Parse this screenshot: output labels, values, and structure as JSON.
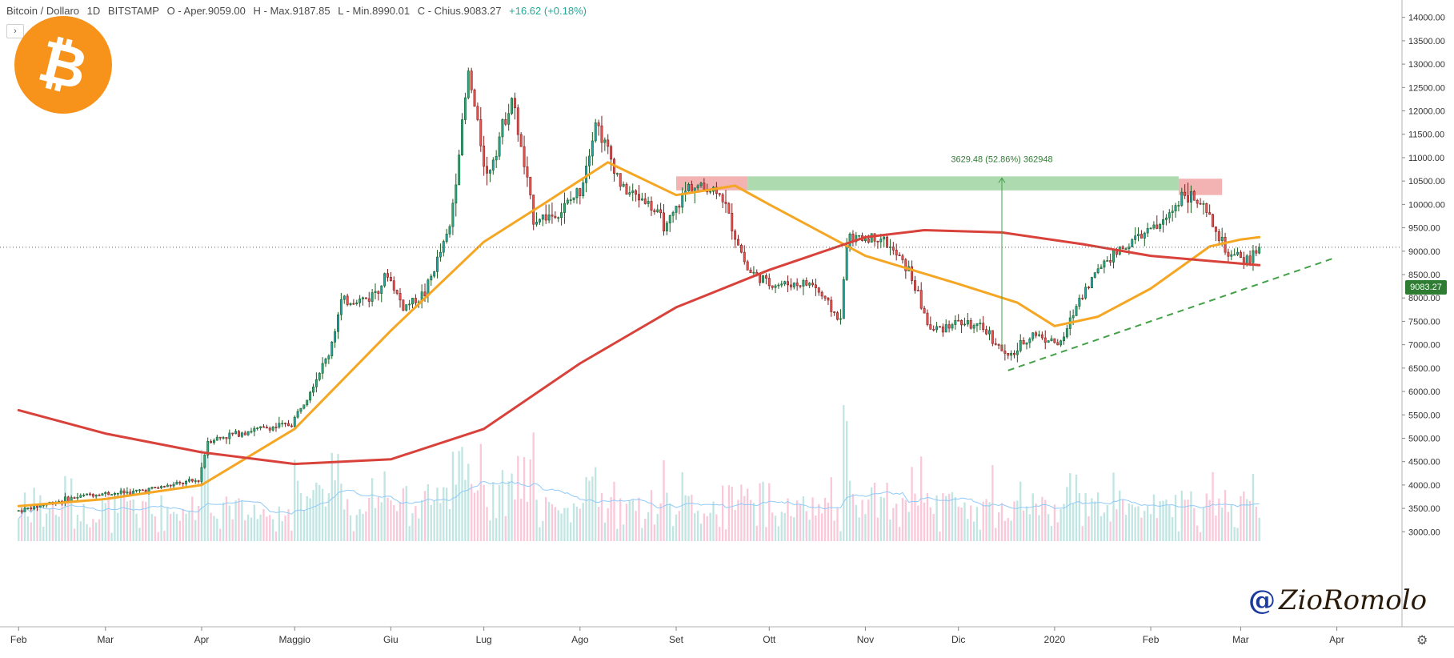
{
  "header": {
    "symbol": "Bitcoin / Dollaro",
    "interval": "1D",
    "exchange": "BITSTAMP",
    "open": "O - Aper.9059.00",
    "high": "H - Max.9187.85",
    "low": "L - Min.8990.01",
    "close": "C - Chius.9083.27",
    "change": "+16.62 (+0.18%)"
  },
  "collapse_button": "›",
  "logo_glyph": "₿",
  "signature": {
    "at": "@",
    "name": "ZioRomolo"
  },
  "price_badge": "9083.27",
  "measure_label": "3629.48 (52.86%) 362948",
  "settings_icon": "⚙",
  "colors": {
    "up": "#26a69a",
    "down": "#ef5350",
    "ma_short": "#f5a623",
    "ma_long": "#d8423a",
    "volume_up": "#b2dfdb",
    "volume_down": "#f8bbd0",
    "volume_ma": "#90caf9",
    "measure_fill": "#a5d6a7",
    "zone_fill": "#ef9a9a",
    "logo": "#f7931a"
  },
  "chart_data": {
    "type": "line",
    "title": "Bitcoin / Dollaro",
    "xlabel": "",
    "ylabel": "",
    "ylim": [
      2800,
      14200
    ],
    "x_tick_labels": [
      "Feb",
      "Mar",
      "Apr",
      "Maggio",
      "Giu",
      "Lug",
      "Ago",
      "Set",
      "Ott",
      "Nov",
      "Dic",
      "2020",
      "Feb",
      "Mar",
      "Apr"
    ],
    "y_ticks": [
      3000,
      3500,
      4000,
      4500,
      5000,
      5500,
      6000,
      6500,
      7000,
      7500,
      8000,
      8500,
      9000,
      9500,
      10000,
      10500,
      11000,
      11500,
      12000,
      12500,
      13000,
      13500,
      14000
    ],
    "price_path": [
      [
        "2019-02-01",
        3450
      ],
      [
        "2019-02-10",
        3600
      ],
      [
        "2019-02-24",
        3800
      ],
      [
        "2019-03-10",
        3850
      ],
      [
        "2019-03-31",
        4100
      ],
      [
        "2019-04-03",
        4950
      ],
      [
        "2019-04-15",
        5150
      ],
      [
        "2019-04-30",
        5300
      ],
      [
        "2019-05-12",
        6800
      ],
      [
        "2019-05-16",
        7900
      ],
      [
        "2019-05-25",
        8000
      ],
      [
        "2019-05-31",
        8500
      ],
      [
        "2019-06-05",
        7800
      ],
      [
        "2019-06-12",
        8100
      ],
      [
        "2019-06-20",
        9500
      ],
      [
        "2019-06-26",
        12800
      ],
      [
        "2019-07-02",
        10600
      ],
      [
        "2019-07-10",
        12300
      ],
      [
        "2019-07-17",
        9700
      ],
      [
        "2019-07-25",
        9800
      ],
      [
        "2019-08-01",
        10300
      ],
      [
        "2019-08-06",
        11800
      ],
      [
        "2019-08-15",
        10300
      ],
      [
        "2019-08-22",
        10100
      ],
      [
        "2019-08-29",
        9500
      ],
      [
        "2019-09-05",
        10400
      ],
      [
        "2019-09-15",
        10300
      ],
      [
        "2019-09-24",
        8600
      ],
      [
        "2019-10-01",
        8300
      ],
      [
        "2019-10-15",
        8300
      ],
      [
        "2019-10-24",
        7500
      ],
      [
        "2019-10-26",
        9250
      ],
      [
        "2019-11-06",
        9300
      ],
      [
        "2019-11-15",
        8600
      ],
      [
        "2019-11-22",
        7300
      ],
      [
        "2019-12-01",
        7500
      ],
      [
        "2019-12-10",
        7300
      ],
      [
        "2019-12-17",
        6700
      ],
      [
        "2019-12-25",
        7250
      ],
      [
        "2020-01-03",
        7000
      ],
      [
        "2020-01-09",
        8000
      ],
      [
        "2020-01-17",
        8800
      ],
      [
        "2020-01-28",
        9300
      ],
      [
        "2020-02-05",
        9600
      ],
      [
        "2020-02-12",
        10300
      ],
      [
        "2020-02-19",
        9800
      ],
      [
        "2020-02-26",
        8900
      ],
      [
        "2020-03-03",
        8800
      ],
      [
        "2020-03-07",
        9083.27
      ]
    ],
    "series": [
      {
        "values": [
          [
            "2019-02-01",
            3550
          ],
          [
            "2019-03-01",
            3700
          ],
          [
            "2019-04-01",
            4000
          ],
          [
            "2019-05-01",
            5200
          ],
          [
            "2019-06-01",
            7300
          ],
          [
            "2019-07-01",
            9200
          ],
          [
            "2019-07-20",
            10000
          ],
          [
            "2019-08-10",
            10900
          ],
          [
            "2019-09-01",
            10200
          ],
          [
            "2019-09-20",
            10400
          ],
          [
            "2019-10-01",
            10000
          ],
          [
            "2019-11-01",
            8900
          ],
          [
            "2019-12-01",
            8300
          ],
          [
            "2019-12-20",
            7900
          ],
          [
            "2020-01-01",
            7400
          ],
          [
            "2020-01-15",
            7600
          ],
          [
            "2020-02-01",
            8200
          ],
          [
            "2020-02-20",
            9100
          ],
          [
            "2020-03-01",
            9250
          ],
          [
            "2020-03-07",
            9300
          ]
        ]
      },
      {
        "values": [
          [
            "2019-02-01",
            5600
          ],
          [
            "2019-03-01",
            5100
          ],
          [
            "2019-04-01",
            4700
          ],
          [
            "2019-05-01",
            4450
          ],
          [
            "2019-06-01",
            4550
          ],
          [
            "2019-07-01",
            5200
          ],
          [
            "2019-08-01",
            6600
          ],
          [
            "2019-09-01",
            7800
          ],
          [
            "2019-10-01",
            8600
          ],
          [
            "2019-11-01",
            9300
          ],
          [
            "2019-11-20",
            9450
          ],
          [
            "2019-12-15",
            9400
          ],
          [
            "2020-01-10",
            9150
          ],
          [
            "2020-02-01",
            8900
          ],
          [
            "2020-03-07",
            8700
          ]
        ]
      }
    ],
    "annotations": [
      {
        "type": "measure",
        "text": "3629.48 (52.86%) 362948",
        "x": [
          "2019-09-24",
          "2020-02-10"
        ],
        "y": [
          10300,
          10600
        ]
      },
      {
        "type": "zone",
        "x": [
          "2019-09-01",
          "2019-09-24"
        ],
        "y": [
          10300,
          10600
        ]
      },
      {
        "type": "zone",
        "x": [
          "2020-02-10",
          "2020-02-24"
        ],
        "y": [
          10200,
          10550
        ]
      },
      {
        "type": "trendline",
        "style": "dashed",
        "x": [
          "2019-12-17",
          "2020-03-31"
        ],
        "y": [
          6450,
          8850
        ]
      },
      {
        "type": "last-price",
        "value": 9083.27
      }
    ],
    "grid": false
  }
}
